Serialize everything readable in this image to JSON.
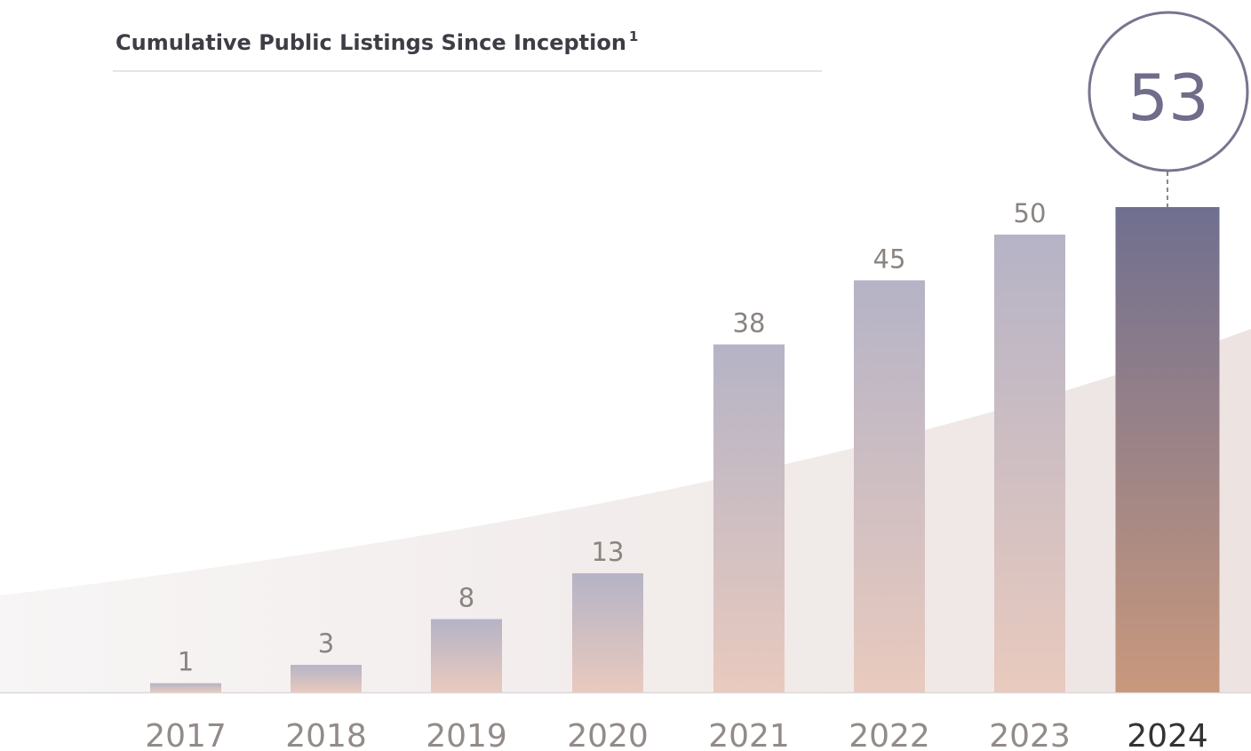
{
  "chart_data": {
    "type": "bar",
    "title": "Cumulative Public Listings Since Inception",
    "title_footnote": "1",
    "categories": [
      "2017",
      "2018",
      "2019",
      "2020",
      "2021",
      "2022",
      "2023",
      "2024"
    ],
    "values": [
      1,
      3,
      8,
      13,
      38,
      45,
      50,
      53
    ],
    "color": "#b5b3c6",
    "highlight_color": "#6f6f90"
  }
}
